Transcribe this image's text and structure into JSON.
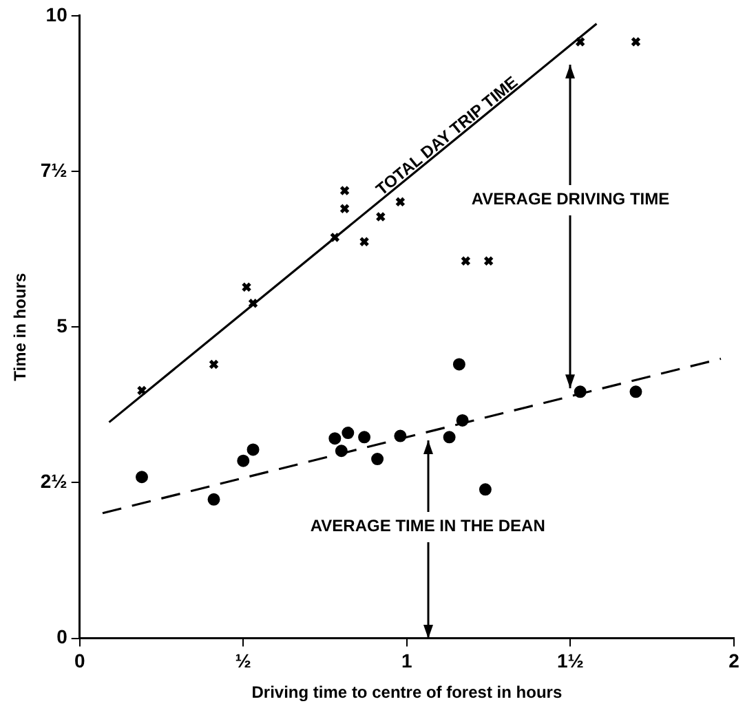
{
  "chart_data": {
    "type": "scatter",
    "xlabel": "Driving time to centre of forest in hours",
    "ylabel": "Time in hours",
    "xlim": [
      0,
      2
    ],
    "xticks": [
      0,
      {
        "value": 0.5,
        "label": "½"
      },
      1,
      {
        "value": 1.5,
        "label": "1½"
      },
      2
    ],
    "ylim": [
      0,
      10
    ],
    "yticks": [
      0,
      {
        "value": 2.5,
        "label": "2½"
      },
      5,
      {
        "value": 7.5,
        "label": "7½"
      },
      10
    ],
    "grid": false,
    "legend": false,
    "series": [
      {
        "type": "scatter",
        "marker": "cross",
        "color": "#000000",
        "x": [
          0.19,
          0.41,
          0.51,
          0.53,
          0.78,
          0.81,
          0.81,
          0.87,
          0.92,
          0.98,
          1.18,
          1.25,
          1.53,
          1.7
        ],
        "values": [
          3.98,
          4.4,
          5.64,
          5.38,
          6.44,
          6.9,
          7.19,
          6.37,
          6.77,
          7.01,
          6.06,
          6.06,
          9.58,
          9.58
        ]
      },
      {
        "type": "scatter",
        "marker": "circle",
        "color": "#000000",
        "x": [
          0.19,
          0.41,
          0.5,
          0.53,
          0.78,
          0.82,
          0.8,
          0.87,
          0.91,
          0.98,
          1.13,
          1.16,
          1.17,
          1.24,
          1.53,
          1.7
        ],
        "values": [
          2.59,
          2.23,
          2.85,
          3.03,
          3.21,
          3.3,
          3.01,
          3.23,
          2.88,
          3.25,
          3.23,
          4.4,
          3.5,
          2.39,
          3.96,
          3.96
        ]
      },
      {
        "type": "line",
        "line_style": "solid",
        "marker": "none",
        "color": "#000000",
        "x": [
          0.09,
          1.58
        ],
        "values": [
          3.47,
          9.87
        ]
      },
      {
        "type": "line",
        "line_style": "dashed",
        "marker": "none",
        "color": "#000000",
        "x": [
          0.07,
          1.96
        ],
        "values": [
          2.01,
          4.49
        ]
      }
    ],
    "annotations": [
      "TOTAL DAY TRIP TIME",
      {
        "text": "AVERAGE DRIVING TIME",
        "x": 1.5,
        "y": 4.02
      },
      "AVERAGE TIME IN THE DEAN"
    ]
  }
}
